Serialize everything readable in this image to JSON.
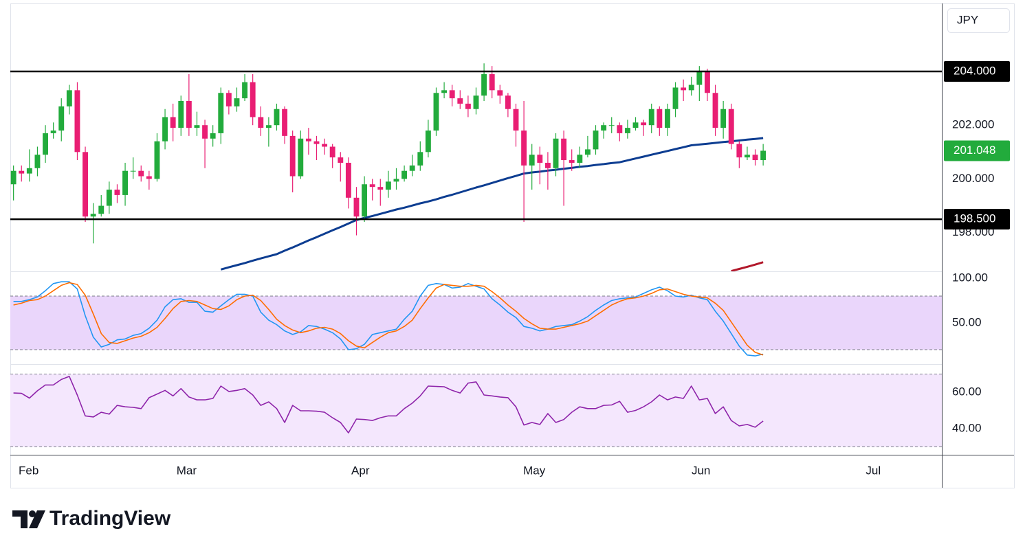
{
  "chart_data": {
    "type": "candlestick",
    "currency": "JPY",
    "up_color": "#22ab3c",
    "down_color": "#e91e73",
    "last_price_label": "201.048",
    "x": [
      0,
      1,
      2,
      3,
      4,
      5,
      6,
      7,
      8,
      9,
      10,
      11,
      12,
      13,
      14,
      15,
      16,
      17,
      18,
      19,
      20,
      21,
      22,
      23,
      24,
      25,
      26,
      27,
      28,
      29,
      30,
      31,
      32,
      33,
      34,
      35,
      36,
      37,
      38,
      39,
      40,
      41,
      42,
      43,
      44,
      45,
      46,
      47,
      48,
      49,
      50,
      51,
      52,
      53,
      54,
      55,
      56,
      57,
      58,
      59,
      60,
      61,
      62,
      63,
      64,
      65,
      66,
      67,
      68,
      69,
      70,
      71,
      72,
      73,
      74,
      75,
      76,
      77,
      78,
      79,
      80,
      81,
      82,
      83,
      84,
      85,
      86,
      87,
      88,
      89,
      90,
      91,
      92,
      93,
      94
    ],
    "open": [
      199.8,
      200.3,
      200.2,
      200.4,
      200.9,
      201.7,
      201.8,
      202.7,
      203.3,
      201.0,
      198.6,
      198.7,
      199.0,
      199.6,
      199.4,
      200.3,
      200.3,
      200.1,
      200.0,
      201.4,
      202.3,
      201.9,
      202.9,
      201.9,
      202.0,
      201.5,
      201.7,
      203.2,
      202.7,
      203.0,
      203.6,
      202.3,
      201.9,
      202.0,
      202.6,
      201.6,
      200.1,
      201.5,
      201.4,
      201.3,
      201.2,
      200.8,
      200.6,
      199.3,
      198.6,
      199.8,
      199.7,
      199.6,
      199.9,
      200.0,
      200.3,
      200.5,
      201.0,
      201.8,
      203.2,
      203.3,
      203.0,
      202.8,
      202.6,
      203.1,
      203.9,
      203.3,
      203.1,
      202.6,
      201.8,
      200.5,
      200.9,
      200.6,
      200.4,
      201.5,
      200.7,
      200.6,
      200.9,
      201.1,
      201.8,
      202.0,
      202.0,
      201.7,
      201.9,
      202.1,
      202.0,
      202.6,
      201.9,
      202.6,
      203.4,
      203.3,
      203.5,
      204.0,
      203.2,
      201.9,
      202.6,
      201.3,
      200.8,
      200.9,
      200.7
    ],
    "high": [
      200.5,
      200.5,
      201.1,
      201.2,
      202.0,
      202.1,
      203.0,
      203.5,
      203.6,
      201.2,
      199.1,
      199.4,
      199.9,
      199.8,
      200.6,
      200.8,
      200.5,
      200.3,
      201.7,
      202.6,
      202.8,
      203.1,
      203.9,
      202.5,
      202.2,
      202.0,
      203.4,
      203.3,
      203.4,
      203.9,
      203.9,
      202.7,
      202.3,
      202.8,
      202.7,
      201.8,
      201.8,
      201.9,
      201.6,
      201.5,
      201.3,
      201.0,
      200.8,
      199.7,
      200.1,
      200.0,
      200.0,
      200.3,
      200.4,
      200.5,
      200.9,
      201.4,
      202.2,
      203.4,
      203.6,
      203.5,
      203.3,
      203.1,
      203.4,
      204.3,
      204.2,
      203.5,
      203.2,
      202.8,
      202.9,
      201.3,
      201.2,
      201.0,
      201.7,
      201.8,
      201.1,
      201.2,
      201.6,
      202.0,
      202.1,
      202.3,
      202.1,
      202.2,
      202.3,
      202.2,
      202.8,
      202.7,
      202.8,
      203.6,
      203.7,
      203.8,
      204.2,
      204.1,
      203.5,
      202.9,
      202.8,
      201.4,
      201.2,
      201.1,
      201.3
    ],
    "low": [
      199.2,
      199.9,
      199.9,
      200.1,
      200.6,
      201.5,
      201.4,
      202.4,
      200.7,
      198.4,
      197.6,
      198.6,
      198.7,
      199.1,
      199.0,
      200.0,
      199.9,
      199.6,
      199.9,
      201.1,
      201.4,
      201.6,
      201.6,
      201.6,
      200.4,
      201.2,
      201.3,
      202.4,
      202.5,
      202.9,
      202.0,
      201.6,
      201.2,
      201.8,
      201.3,
      199.5,
      200.0,
      200.9,
      200.7,
      200.9,
      200.4,
      199.9,
      198.9,
      197.9,
      198.4,
      199.2,
      199.0,
      199.3,
      199.6,
      199.9,
      200.1,
      200.3,
      200.8,
      201.6,
      203.0,
      202.7,
      202.6,
      202.3,
      202.4,
      202.9,
      203.0,
      202.8,
      202.3,
      201.2,
      198.4,
      199.6,
      199.8,
      199.6,
      200.1,
      199.0,
      200.3,
      200.4,
      200.8,
      200.9,
      201.5,
      201.7,
      201.4,
      201.5,
      201.8,
      201.6,
      201.7,
      201.6,
      201.6,
      202.3,
      202.9,
      203.1,
      202.9,
      202.9,
      201.6,
      201.5,
      201.1,
      200.4,
      200.7,
      200.5,
      200.5
    ],
    "close": [
      200.3,
      200.2,
      200.4,
      200.9,
      201.7,
      201.8,
      202.7,
      203.3,
      201.0,
      198.6,
      198.7,
      199.0,
      199.6,
      199.4,
      200.3,
      200.3,
      200.1,
      200.0,
      201.4,
      202.3,
      201.9,
      202.9,
      201.9,
      202.0,
      201.5,
      201.7,
      203.2,
      202.7,
      203.0,
      203.6,
      202.3,
      201.9,
      202.0,
      202.6,
      201.6,
      200.1,
      201.5,
      201.4,
      201.3,
      201.2,
      200.8,
      200.6,
      199.3,
      198.6,
      199.8,
      199.7,
      199.6,
      199.9,
      200.0,
      200.3,
      200.5,
      201.0,
      201.8,
      203.2,
      203.3,
      203.0,
      202.8,
      202.6,
      203.1,
      203.9,
      203.3,
      203.1,
      202.6,
      201.8,
      200.5,
      200.9,
      200.6,
      200.4,
      201.5,
      200.7,
      200.6,
      200.9,
      201.1,
      201.8,
      202.0,
      202.0,
      201.7,
      201.9,
      202.1,
      202.0,
      202.6,
      201.9,
      202.6,
      203.4,
      203.3,
      203.5,
      204.0,
      203.2,
      201.9,
      202.6,
      201.3,
      200.8,
      200.9,
      200.7,
      201.048
    ],
    "xlim": [
      -0.4,
      116.4
    ],
    "xticks": [
      {
        "value": 1.9,
        "label": "Feb"
      },
      {
        "value": 21.7,
        "label": "Mar"
      },
      {
        "value": 43.5,
        "label": "Apr"
      },
      {
        "value": 65.3,
        "label": "May"
      },
      {
        "value": 86.2,
        "label": "Jun"
      },
      {
        "value": 107.8,
        "label": "Jul"
      }
    ],
    "ylim": [
      196.56,
      206.53
    ],
    "yticks": [
      {
        "value": 198,
        "label": "198.000"
      },
      {
        "value": 200,
        "label": "200.000"
      },
      {
        "value": 202,
        "label": "202.000"
      }
    ],
    "hlines": [
      {
        "value": 204,
        "label": "204.000"
      },
      {
        "value": 198.5,
        "label": "198.500"
      }
    ],
    "overlays": [
      {
        "color": "#0d3d91",
        "values": [
          null,
          null,
          null,
          null,
          null,
          null,
          null,
          null,
          null,
          null,
          null,
          null,
          null,
          null,
          null,
          null,
          null,
          null,
          null,
          null,
          null,
          null,
          null,
          null,
          null,
          null,
          196.63,
          196.71,
          196.79,
          196.87,
          196.96,
          197.04,
          197.12,
          197.2,
          197.33,
          197.45,
          197.58,
          197.71,
          197.83,
          197.96,
          198.09,
          198.21,
          198.34,
          198.47,
          198.55,
          198.62,
          198.7,
          198.78,
          198.86,
          198.93,
          199.01,
          199.09,
          199.16,
          199.24,
          199.33,
          199.41,
          199.5,
          199.59,
          199.68,
          199.76,
          199.85,
          199.94,
          200.03,
          200.11,
          200.2,
          200.24,
          200.27,
          200.31,
          200.34,
          200.38,
          200.41,
          200.45,
          200.48,
          200.52,
          200.55,
          200.59,
          200.62,
          200.69,
          200.76,
          200.83,
          200.9,
          200.97,
          201.04,
          201.11,
          201.18,
          201.25,
          201.28,
          201.31,
          201.34,
          201.37,
          201.4,
          201.43,
          201.46,
          201.49,
          201.52
        ]
      },
      {
        "color": "#b2182b",
        "values": [
          null,
          null,
          null,
          null,
          null,
          null,
          null,
          null,
          null,
          null,
          null,
          null,
          null,
          null,
          null,
          null,
          null,
          null,
          null,
          null,
          null,
          null,
          null,
          null,
          null,
          null,
          null,
          null,
          null,
          null,
          null,
          null,
          null,
          null,
          null,
          null,
          null,
          null,
          null,
          null,
          null,
          null,
          null,
          null,
          null,
          null,
          null,
          null,
          null,
          null,
          null,
          null,
          null,
          null,
          null,
          null,
          null,
          null,
          null,
          null,
          null,
          null,
          null,
          null,
          null,
          null,
          null,
          null,
          null,
          null,
          null,
          null,
          null,
          null,
          null,
          null,
          null,
          null,
          null,
          null,
          null,
          null,
          null,
          null,
          null,
          null,
          null,
          null,
          null,
          null,
          196.57,
          196.65,
          196.73,
          196.81,
          196.9
        ]
      }
    ],
    "panels": [
      {
        "type": "stochastic",
        "ylim": [
          3.85,
          107.7
        ],
        "yticks": [
          {
            "value": 50,
            "label": "50.00"
          },
          {
            "value": 100,
            "label": "100.00"
          }
        ],
        "bands": [
          20,
          80
        ],
        "band_color": "#ead6fb",
        "series": [
          {
            "color": "#2196f3",
            "values": [
              74,
              74,
              76,
              79,
              86,
              94,
              96,
              96,
              88,
              58,
              34,
              23,
              26,
              31,
              32,
              36,
              38,
              44,
              53,
              68,
              76,
              77,
              73,
              73,
              63,
              62,
              69,
              76,
              82,
              82,
              80,
              62,
              53,
              48,
              41,
              37,
              40,
              47,
              46,
              43,
              39,
              32,
              20,
              21,
              26,
              37,
              39,
              41,
              43,
              54,
              63,
              80,
              92,
              94,
              93,
              89,
              90,
              94,
              91,
              88,
              77,
              70,
              62,
              56,
              46,
              44,
              41,
              43,
              46,
              47,
              48,
              52,
              57,
              64,
              70,
              75,
              77,
              78,
              79,
              83,
              87,
              90,
              86,
              80,
              79,
              81,
              78,
              76,
              63,
              52,
              38,
              24,
              14,
              13,
              15
            ]
          },
          {
            "color": "#ff6d00",
            "values": [
              70,
              72,
              75,
              76,
              80,
              86,
              92,
              95,
              93,
              81,
              60,
              38,
              28,
              27,
              30,
              33,
              35,
              39,
              45,
              55,
              66,
              74,
              75,
              74,
              70,
              66,
              65,
              69,
              76,
              80,
              81,
              75,
              65,
              54,
              47,
              42,
              39,
              41,
              44,
              45,
              43,
              38,
              30,
              24,
              22,
              28,
              34,
              39,
              41,
              46,
              53,
              66,
              78,
              89,
              93,
              92,
              91,
              91,
              92,
              91,
              85,
              78,
              70,
              63,
              55,
              49,
              44,
              43,
              43,
              45,
              47,
              49,
              52,
              58,
              64,
              70,
              74,
              77,
              78,
              80,
              83,
              87,
              88,
              85,
              82,
              80,
              79,
              78,
              72,
              64,
              51,
              38,
              25,
              17,
              14
            ]
          }
        ]
      },
      {
        "type": "rsi",
        "ylim": [
          25.66,
          75.47
        ],
        "yticks": [
          {
            "value": 40,
            "label": "40.00"
          },
          {
            "value": 60,
            "label": "60.00"
          }
        ],
        "bands": [
          30,
          70
        ],
        "band_color": "#f4e7fd",
        "series": [
          {
            "color": "#8e24aa",
            "values": [
              59.6,
              59.4,
              56.8,
              60.8,
              64,
              64,
              67,
              68.7,
              58.5,
              47,
              46.4,
              49,
              48,
              52.8,
              52,
              51.7,
              51,
              57,
              59,
              61,
              58,
              62,
              57.4,
              55.8,
              55.8,
              56.6,
              63.4,
              60.4,
              61,
              62,
              58.5,
              52.8,
              54.7,
              51,
              43.4,
              52.8,
              49.8,
              49.8,
              49.6,
              49,
              46,
              43.4,
              37.7,
              45.3,
              45,
              44.5,
              46,
              47,
              47,
              51,
              54,
              58,
              63.4,
              63.2,
              63,
              61,
              59.6,
              65,
              65.7,
              58.5,
              58,
              57.4,
              57,
              52,
              42,
              43.4,
              42.3,
              48.3,
              43.4,
              45,
              49,
              52,
              51,
              51,
              52.8,
              53,
              55,
              49,
              50,
              52,
              54.7,
              58.5,
              55.8,
              57.4,
              56.6,
              63.4,
              55.8,
              56.6,
              48.3,
              52,
              44.5,
              41.5,
              42.3,
              40.8,
              44.2
            ]
          }
        ]
      }
    ]
  },
  "brand": "TradingView"
}
